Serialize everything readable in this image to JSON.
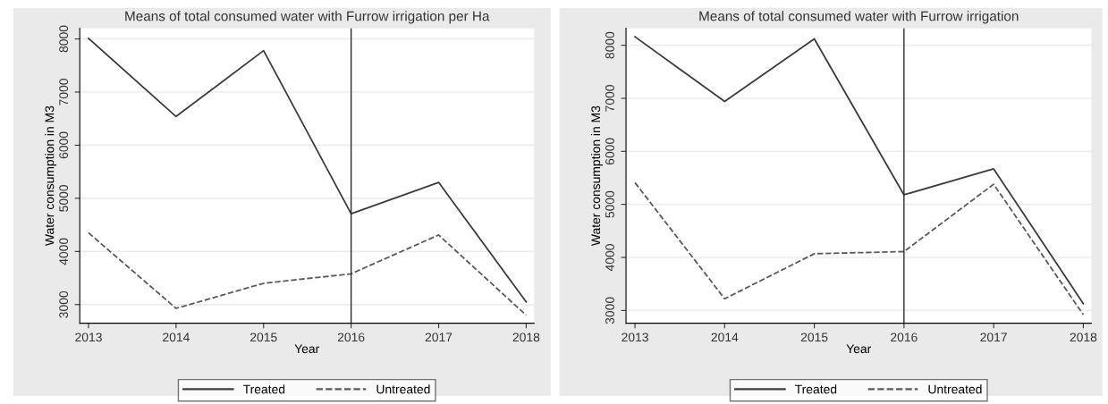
{
  "chart_data": [
    {
      "type": "line",
      "title": "Means of total consumed water with Furrow irrigation per Ha",
      "xlabel": "Year",
      "ylabel": "Water consumption in M3",
      "x": [
        2013,
        2014,
        2015,
        2016,
        2017,
        2018
      ],
      "series": [
        {
          "name": "Treated",
          "color": "#3c3c3c",
          "line_style": "solid",
          "values": [
            8010,
            6540,
            7780,
            4710,
            5300,
            3050
          ]
        },
        {
          "name": "Untreated",
          "color": "#5a5a5a",
          "line_style": "dashed",
          "values": [
            4350,
            2930,
            3400,
            3580,
            4310,
            2800
          ]
        }
      ],
      "xlim": [
        2012.9,
        2018.09
      ],
      "xticks": [
        2013,
        2014,
        2015,
        2016,
        2017,
        2018
      ],
      "ylim": [
        2650,
        8200
      ],
      "yticks": [
        3000,
        4000,
        5000,
        6000,
        7000,
        8000
      ],
      "ref_lines": [
        {
          "axis": "x",
          "value": 2016,
          "color": "#2a2a2a"
        }
      ],
      "grid": "y",
      "legend": "bottom",
      "marker": "none"
    },
    {
      "type": "line",
      "title": "Means of total consumed water with Furrow irrigation",
      "xlabel": "Year",
      "ylabel": "Water consumption in M3",
      "x": [
        2013,
        2014,
        2015,
        2016,
        2017,
        2018
      ],
      "series": [
        {
          "name": "Treated",
          "color": "#3c3c3c",
          "line_style": "solid",
          "values": [
            8160,
            6940,
            8120,
            5180,
            5670,
            3130
          ]
        },
        {
          "name": "Untreated",
          "color": "#5a5a5a",
          "line_style": "dashed",
          "values": [
            5410,
            3220,
            4070,
            4110,
            5380,
            2920
          ]
        }
      ],
      "xlim": [
        2012.9,
        2018.09
      ],
      "xticks": [
        2013,
        2014,
        2015,
        2016,
        2017,
        2018
      ],
      "ylim": [
        2760,
        8320
      ],
      "yticks": [
        3000,
        4000,
        5000,
        6000,
        7000,
        8000
      ],
      "ref_lines": [
        {
          "axis": "x",
          "value": 2016,
          "color": "#2a2a2a"
        }
      ],
      "grid": "y",
      "legend": "bottom",
      "marker": "none"
    }
  ]
}
